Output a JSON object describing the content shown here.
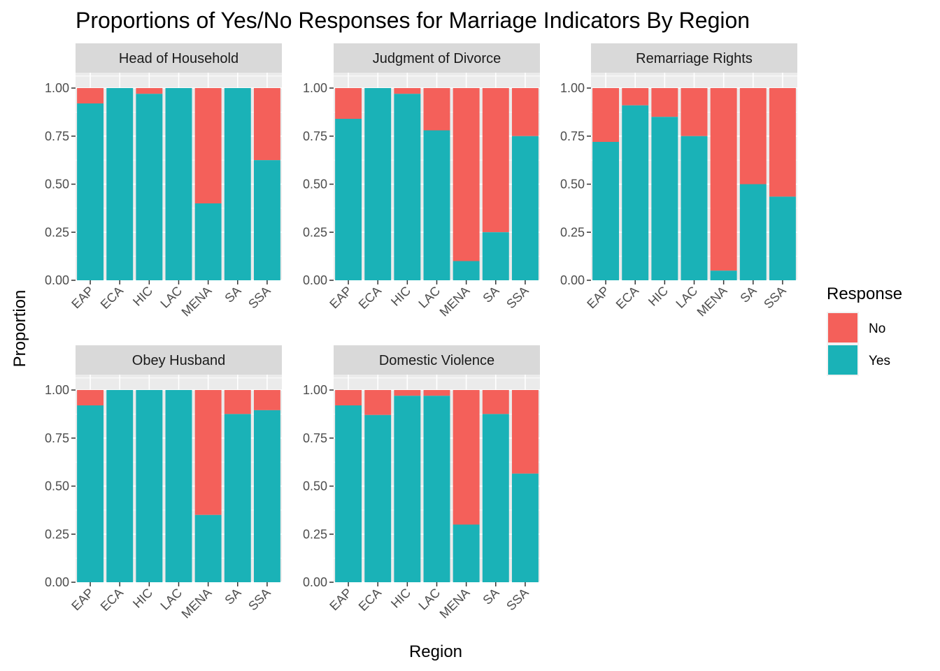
{
  "chart_data": {
    "type": "bar",
    "stacked": true,
    "title": "Proportions of Yes/No Responses for Marriage Indicators By Region",
    "xlabel": "Region",
    "ylabel": "Proportion",
    "ylim": [
      0,
      1.08
    ],
    "y_ticks": [
      "0.00",
      "0.25",
      "0.50",
      "0.75",
      "1.00"
    ],
    "categories": [
      "EAP",
      "ECA",
      "HIC",
      "LAC",
      "MENA",
      "SA",
      "SSA"
    ],
    "legend": {
      "title": "Response",
      "position": "right",
      "items": [
        {
          "label": "No",
          "color": "#F8766D"
        },
        {
          "label": "Yes",
          "color": "#00BFC4"
        }
      ]
    },
    "colors": {
      "yes": "#1AB2B7",
      "no": "#F4605A",
      "panel": "#EBEBEB",
      "strip": "#D9D9D9",
      "grid": "#FFFFFF"
    },
    "panels": [
      {
        "name": "Head of Household",
        "yes": [
          0.92,
          1.0,
          0.97,
          1.0,
          0.4,
          1.0,
          0.625
        ]
      },
      {
        "name": "Judgment of Divorce",
        "yes": [
          0.84,
          1.0,
          0.97,
          0.78,
          0.1,
          0.25,
          0.75
        ]
      },
      {
        "name": "Remarriage Rights",
        "yes": [
          0.72,
          0.91,
          0.85,
          0.75,
          0.05,
          0.5,
          0.435
        ]
      },
      {
        "name": "Obey Husband",
        "yes": [
          0.92,
          1.0,
          1.0,
          1.0,
          0.35,
          0.875,
          0.895
        ]
      },
      {
        "name": "Domestic Violence",
        "yes": [
          0.92,
          0.87,
          0.97,
          0.97,
          0.3,
          0.875,
          0.565
        ]
      }
    ]
  }
}
